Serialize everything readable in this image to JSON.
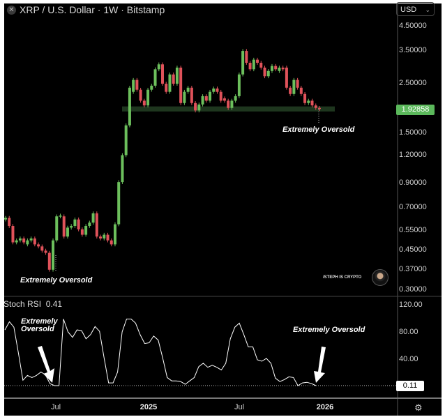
{
  "header": {
    "title": "XRP / U.S. Dollar · 1W · Bitstamp",
    "close_icon": "x-icon",
    "currency": "USD"
  },
  "colors": {
    "up": "#6cbf5c",
    "down": "#e0525a",
    "support_zone": "#1e361e",
    "price_tag": "#5bb85b",
    "background": "#000000"
  },
  "chart_data": [
    {
      "type": "candlestick",
      "title": "XRP / U.S. Dollar · 1W · Bitstamp",
      "y_scale": "log",
      "ylim": [
        0.29,
        4.9
      ],
      "y_ticks": [
        "4.50000",
        "3.50000",
        "2.50000",
        "1.50000",
        "1.20000",
        "0.90000",
        "0.70000",
        "0.55000",
        "0.45000",
        "0.37000",
        "0.30000"
      ],
      "current_price": "1.92858",
      "support_zone": [
        1.88,
        1.98
      ],
      "candles_open_close": [
        [
          0.62,
          0.63
        ],
        [
          0.63,
          0.58
        ],
        [
          0.58,
          0.49
        ],
        [
          0.49,
          0.5
        ],
        [
          0.5,
          0.51
        ],
        [
          0.51,
          0.49
        ],
        [
          0.48,
          0.5
        ],
        [
          0.5,
          0.51
        ],
        [
          0.51,
          0.48
        ],
        [
          0.48,
          0.47
        ],
        [
          0.47,
          0.45
        ],
        [
          0.45,
          0.44
        ],
        [
          0.44,
          0.37
        ],
        [
          0.37,
          0.5
        ],
        [
          0.5,
          0.64
        ],
        [
          0.64,
          0.645
        ],
        [
          0.64,
          0.52
        ],
        [
          0.52,
          0.57
        ],
        [
          0.57,
          0.58
        ],
        [
          0.58,
          0.62
        ],
        [
          0.62,
          0.56
        ],
        [
          0.56,
          0.53
        ],
        [
          0.53,
          0.58
        ],
        [
          0.58,
          0.6
        ],
        [
          0.6,
          0.66
        ],
        [
          0.66,
          0.52
        ],
        [
          0.52,
          0.51
        ],
        [
          0.51,
          0.53
        ],
        [
          0.53,
          0.5
        ],
        [
          0.5,
          0.48
        ],
        [
          0.48,
          0.59
        ],
        [
          0.59,
          0.91
        ],
        [
          0.91,
          1.2
        ],
        [
          1.2,
          1.63
        ],
        [
          1.63,
          2.4
        ],
        [
          2.3,
          2.6
        ],
        [
          2.6,
          2.35
        ],
        [
          2.35,
          2.1
        ],
        [
          2.1,
          2.0
        ],
        [
          2.0,
          2.35
        ],
        [
          2.35,
          2.45
        ],
        [
          2.45,
          2.9
        ],
        [
          2.9,
          3.05
        ],
        [
          3.05,
          2.5
        ],
        [
          2.5,
          2.3
        ],
        [
          2.3,
          2.75
        ],
        [
          2.75,
          2.5
        ],
        [
          2.5,
          2.95
        ],
        [
          2.95,
          2.05
        ],
        [
          2.05,
          2.3
        ],
        [
          2.3,
          2.4
        ],
        [
          2.4,
          2.05
        ],
        [
          2.05,
          1.9
        ],
        [
          1.9,
          2.02
        ],
        [
          2.02,
          2.2
        ],
        [
          2.2,
          2.1
        ],
        [
          2.1,
          2.3
        ],
        [
          2.3,
          2.38
        ],
        [
          2.38,
          2.3
        ],
        [
          2.3,
          2.1
        ],
        [
          2.15,
          2.1
        ],
        [
          2.1,
          1.95
        ],
        [
          1.95,
          2.1
        ],
        [
          2.1,
          2.2
        ],
        [
          2.2,
          2.75
        ],
        [
          2.75,
          3.5
        ],
        [
          3.5,
          3.1
        ],
        [
          3.1,
          2.9
        ],
        [
          2.9,
          3.2
        ],
        [
          3.2,
          3.1
        ],
        [
          3.1,
          2.95
        ],
        [
          2.95,
          2.7
        ],
        [
          2.7,
          2.85
        ],
        [
          2.85,
          3.0
        ],
        [
          3.0,
          2.9
        ],
        [
          2.85,
          2.95
        ],
        [
          2.95,
          2.9
        ],
        [
          2.95,
          2.4
        ],
        [
          2.4,
          2.25
        ],
        [
          2.25,
          2.6
        ],
        [
          2.6,
          2.4
        ],
        [
          2.4,
          2.25
        ],
        [
          2.25,
          2.05
        ],
        [
          2.05,
          2.1
        ],
        [
          2.1,
          2.0
        ],
        [
          2.0,
          1.95
        ],
        [
          1.95,
          1.93
        ]
      ],
      "x_ticks": [
        "Jul",
        "2025",
        "Jul",
        "2026"
      ],
      "annotations": [
        "Extremely Oversold",
        "Extremely Oversold"
      ]
    },
    {
      "type": "line",
      "series_label": "Stoch RSI",
      "current_value_label": "0.41",
      "last_value": "0.11",
      "ylim": [
        0,
        125
      ],
      "y_ticks": [
        "120.00",
        "80.00",
        "40.00"
      ],
      "values": [
        84,
        96,
        88,
        50,
        10,
        17,
        14,
        17,
        22,
        18,
        5,
        2,
        2,
        100,
        81,
        73,
        84,
        83,
        71,
        77,
        89,
        82,
        43,
        6,
        6,
        22,
        81,
        100,
        100,
        94,
        77,
        64,
        65,
        75,
        69,
        43,
        14,
        9,
        9,
        8,
        4,
        9,
        14,
        30,
        35,
        29,
        32,
        29,
        25,
        35,
        71,
        88,
        94,
        77,
        59,
        59,
        40,
        38,
        42,
        35,
        13,
        8,
        11,
        15,
        14,
        2,
        6,
        7,
        5,
        2
      ],
      "annotations": [
        "Extremely\nOversold",
        "Extremely Oversold"
      ]
    }
  ],
  "annotations": {
    "price_left": "Extremely Oversold",
    "price_right": "Extremely Oversold",
    "rsi_left_1": "Extremely",
    "rsi_left_2": "Oversold",
    "rsi_right": "Extremely Oversold"
  },
  "watermark": "/STEPH IS CRYPTO",
  "settings_icon": "gear-icon"
}
